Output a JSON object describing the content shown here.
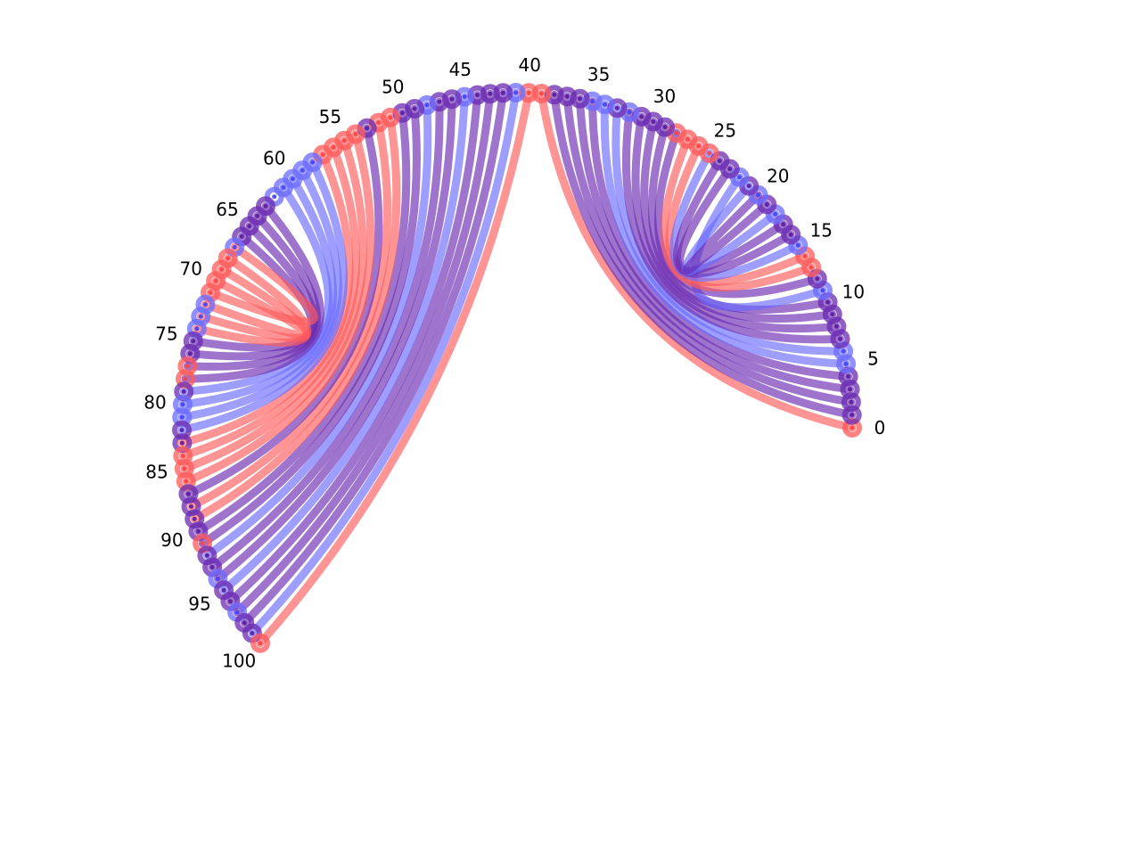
{
  "chart_data": {
    "type": "chord-diagram",
    "node_count": 101,
    "tick_labels": [
      "0",
      "5",
      "10",
      "15",
      "20",
      "25",
      "30",
      "35",
      "40",
      "45",
      "50",
      "55",
      "60",
      "65",
      "70",
      "75",
      "80",
      "85",
      "90",
      "95",
      "100"
    ],
    "tick_step": 5,
    "colors": {
      "red": "#ff5a5a",
      "blue": "#6a6aff",
      "purple": "#6a2ab0",
      "red_core": "#ff4040",
      "blue_core": "#4040ff",
      "purple_core": "#5a1aa0"
    },
    "node_colors": [
      "red",
      "purple",
      "purple",
      "purple",
      "purple",
      "blue",
      "blue",
      "purple",
      "purple",
      "purple",
      "purple",
      "blue",
      "purple",
      "red",
      "red",
      "blue",
      "purple",
      "purple",
      "blue",
      "purple",
      "blue",
      "purple",
      "blue",
      "purple",
      "purple",
      "red",
      "red",
      "red",
      "red",
      "purple",
      "purple",
      "purple",
      "blue",
      "purple",
      "blue",
      "blue",
      "purple",
      "purple",
      "purple",
      "red",
      "red",
      "blue",
      "purple",
      "purple",
      "purple",
      "blue",
      "purple",
      "purple",
      "blue",
      "purple",
      "purple",
      "red",
      "red",
      "purple",
      "red",
      "red",
      "red",
      "red",
      "blue",
      "blue",
      "blue",
      "blue",
      "blue",
      "purple",
      "purple",
      "purple",
      "purple",
      "blue",
      "red",
      "red",
      "red",
      "red",
      "blue",
      "blue",
      "blue",
      "purple",
      "purple",
      "red",
      "red",
      "purple",
      "blue",
      "blue",
      "purple",
      "purple",
      "red",
      "red",
      "red",
      "purple",
      "purple",
      "purple",
      "purple",
      "red",
      "purple",
      "purple",
      "blue",
      "purple",
      "purple",
      "blue",
      "purple",
      "purple",
      "red",
      "blue"
    ],
    "chords": [
      [
        0,
        39,
        "red"
      ],
      [
        1,
        38,
        "purple"
      ],
      [
        2,
        37,
        "purple"
      ],
      [
        3,
        36,
        "purple"
      ],
      [
        4,
        35,
        "purple"
      ],
      [
        5,
        34,
        "blue"
      ],
      [
        6,
        33,
        "blue"
      ],
      [
        7,
        32,
        "purple"
      ],
      [
        8,
        31,
        "purple"
      ],
      [
        9,
        30,
        "purple"
      ],
      [
        10,
        29,
        "purple"
      ],
      [
        11,
        22,
        "blue"
      ],
      [
        12,
        28,
        "purple"
      ],
      [
        13,
        27,
        "red"
      ],
      [
        14,
        26,
        "red"
      ],
      [
        15,
        25,
        "blue"
      ],
      [
        16,
        24,
        "purple"
      ],
      [
        17,
        23,
        "purple"
      ],
      [
        18,
        21,
        "blue"
      ],
      [
        19,
        20,
        "purple"
      ],
      [
        40,
        100,
        "red"
      ],
      [
        41,
        99,
        "blue"
      ],
      [
        42,
        98,
        "purple"
      ],
      [
        43,
        97,
        "purple"
      ],
      [
        44,
        96,
        "purple"
      ],
      [
        45,
        95,
        "blue"
      ],
      [
        46,
        94,
        "purple"
      ],
      [
        47,
        93,
        "purple"
      ],
      [
        48,
        92,
        "blue"
      ],
      [
        49,
        91,
        "purple"
      ],
      [
        50,
        90,
        "purple"
      ],
      [
        51,
        89,
        "red"
      ],
      [
        52,
        88,
        "red"
      ],
      [
        53,
        87,
        "purple"
      ],
      [
        54,
        86,
        "red"
      ],
      [
        55,
        85,
        "red"
      ],
      [
        56,
        84,
        "red"
      ],
      [
        57,
        83,
        "red"
      ],
      [
        58,
        82,
        "blue"
      ],
      [
        59,
        81,
        "blue"
      ],
      [
        60,
        80,
        "blue"
      ],
      [
        61,
        79,
        "blue"
      ],
      [
        63,
        78,
        "purple"
      ],
      [
        64,
        77,
        "purple"
      ],
      [
        65,
        76,
        "purple"
      ],
      [
        66,
        75,
        "purple"
      ],
      [
        68,
        74,
        "red"
      ],
      [
        69,
        73,
        "red"
      ],
      [
        70,
        72,
        "red"
      ],
      [
        71,
        67,
        "red"
      ]
    ]
  }
}
